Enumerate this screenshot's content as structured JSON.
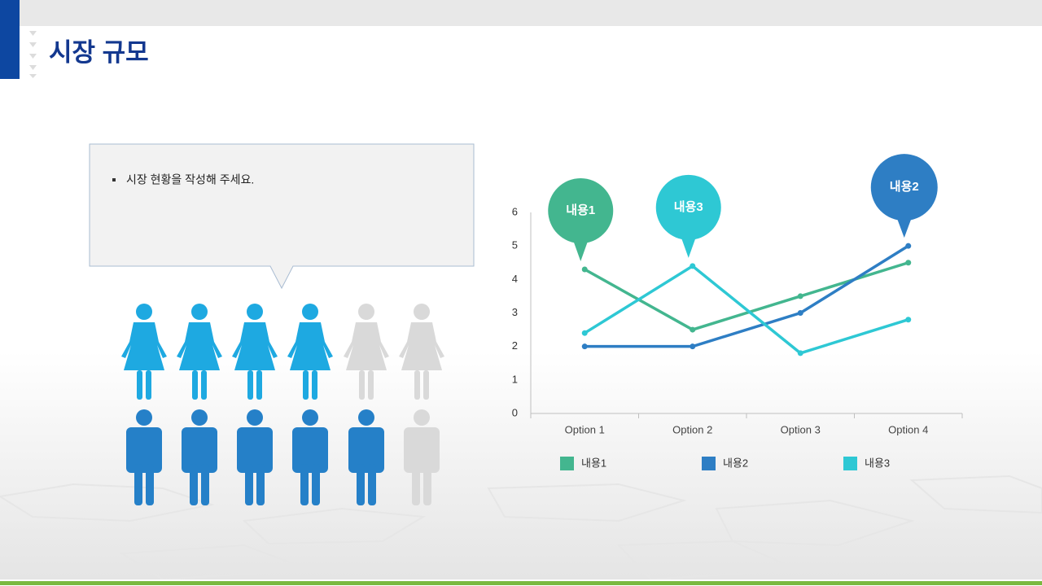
{
  "title": "시장 규모",
  "bullet": "시장 현황을 작성해 주세요.",
  "chart_data": {
    "type": "line",
    "categories": [
      "Option 1",
      "Option 2",
      "Option 3",
      "Option 4"
    ],
    "series": [
      {
        "name": "내용1",
        "color": "#43b68f",
        "values": [
          4.3,
          2.5,
          3.5,
          4.5
        ]
      },
      {
        "name": "내용2",
        "color": "#2e7ec4",
        "values": [
          2,
          2,
          3,
          5
        ]
      },
      {
        "name": "내용3",
        "color": "#2ec8d4",
        "values": [
          2.4,
          4.4,
          1.8,
          2.8
        ]
      }
    ],
    "ylim": [
      0,
      6
    ],
    "yticks": [
      0,
      1,
      2,
      3,
      4,
      5,
      6
    ],
    "legend": "bottom"
  }
}
